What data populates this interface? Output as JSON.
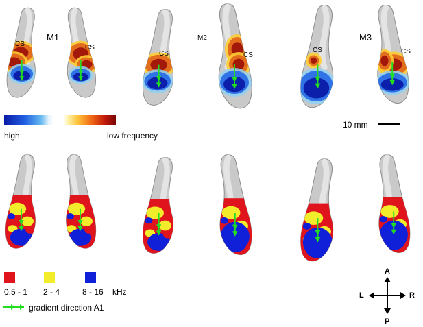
{
  "subjects": {
    "m1": "M1",
    "m2": "M2",
    "m3": "M3"
  },
  "sulcus_label": "CS",
  "tonotopy_bar": {
    "high": "high",
    "low": "low frequency"
  },
  "scale_bar": {
    "label": "10 mm"
  },
  "bands": {
    "band1": {
      "label": "0.5 - 1",
      "color": "#e0141c"
    },
    "band2": {
      "label": "2 - 4",
      "color": "#f2ec2a"
    },
    "band3": {
      "label": "8 - 16",
      "color": "#1020d8"
    },
    "unit": "kHz"
  },
  "gradient_legend": {
    "label": "gradient direction A1",
    "color": "#22dd22"
  },
  "compass": {
    "anterior": "A",
    "posterior": "P",
    "left": "L",
    "right": "R"
  },
  "colors": {
    "cortex": "#c9c9c9",
    "cortex_edge": "#8a8a8a",
    "gyrus_highlight": "#e4e4e4"
  }
}
